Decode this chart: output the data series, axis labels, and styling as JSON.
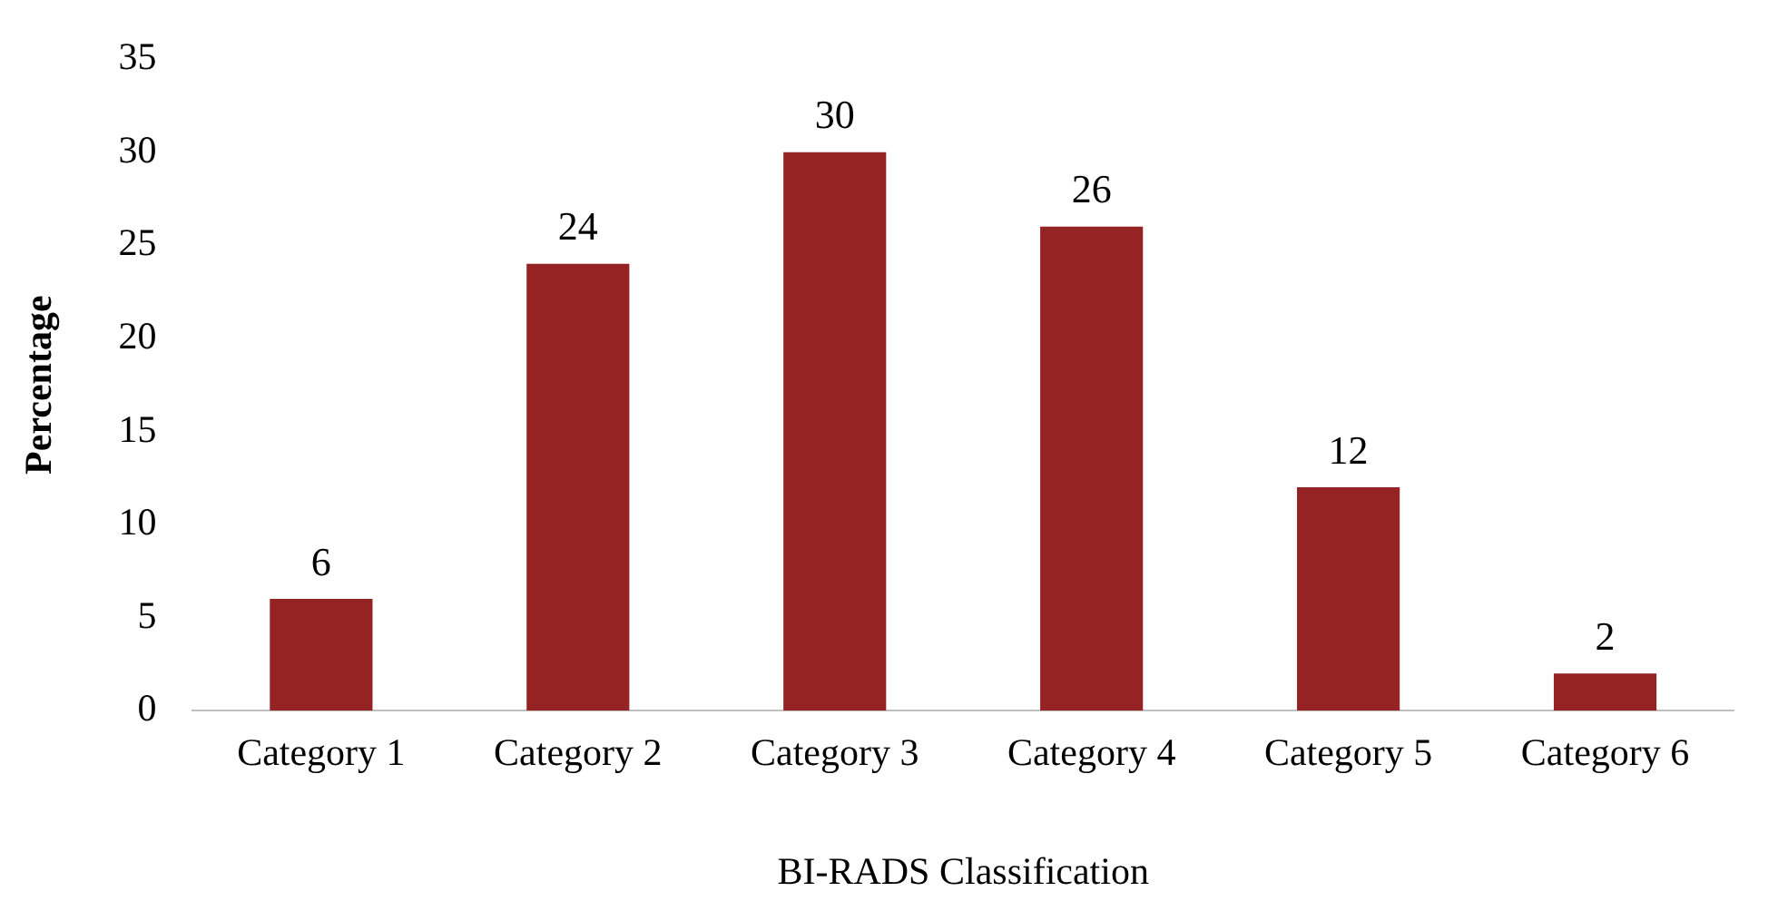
{
  "chart_data": {
    "type": "bar",
    "xlabel": "BI-RADS Classification",
    "ylabel": "Percentage",
    "categories": [
      "Category 1",
      "Category 2",
      "Category 3",
      "Category 4",
      "Category 5",
      "Category 6"
    ],
    "values": [
      6,
      24,
      30,
      26,
      12,
      2
    ],
    "color": "#962323",
    "ylim": [
      0,
      35
    ],
    "yticks": [
      0,
      5,
      10,
      15,
      20,
      25,
      30,
      35
    ],
    "data_labels": true,
    "legend": false
  }
}
